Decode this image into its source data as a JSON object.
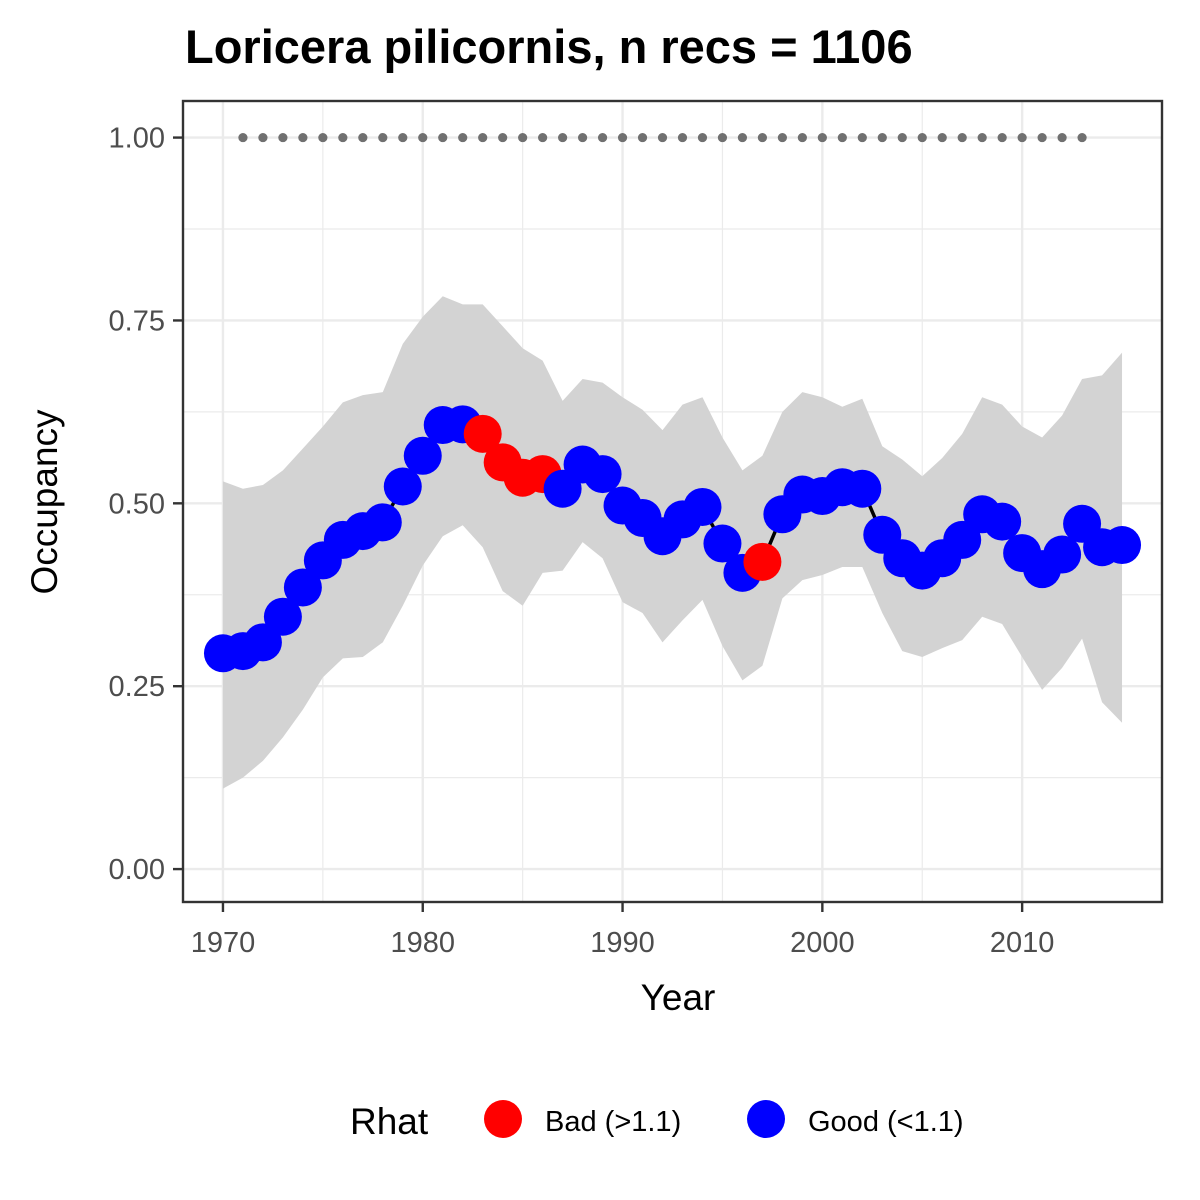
{
  "chart_data": {
    "type": "line",
    "title": "Loricera pilicornis, n recs = 1106",
    "xlabel": "Year",
    "ylabel": "Occupancy",
    "xlim": [
      1968,
      2017
    ],
    "ylim": [
      -0.045,
      1.05
    ],
    "x_ticks": [
      1970,
      1980,
      1990,
      2000,
      2010
    ],
    "y_ticks": [
      0.0,
      0.25,
      0.5,
      0.75,
      1.0
    ],
    "x_tick_labels": [
      "1970",
      "1980",
      "1990",
      "2000",
      "2010"
    ],
    "y_tick_labels": [
      "0.00",
      "0.25",
      "0.50",
      "0.75",
      "1.00"
    ],
    "grid": true,
    "legend": {
      "title": "Rhat",
      "position": "bottom",
      "entries": [
        {
          "label": "Bad (>1.1)",
          "color": "#ff0000"
        },
        {
          "label": "Good (<1.1)",
          "color": "#0000ff"
        }
      ]
    },
    "x": [
      1970,
      1971,
      1972,
      1973,
      1974,
      1975,
      1976,
      1977,
      1978,
      1979,
      1980,
      1981,
      1982,
      1983,
      1984,
      1985,
      1986,
      1987,
      1988,
      1989,
      1990,
      1991,
      1992,
      1993,
      1994,
      1995,
      1996,
      1997,
      1998,
      1999,
      2000,
      2001,
      2002,
      2003,
      2004,
      2005,
      2006,
      2007,
      2008,
      2009,
      2010,
      2011,
      2012,
      2013,
      2014,
      2015
    ],
    "series": [
      {
        "values": [
          0.295,
          0.298,
          0.31,
          0.345,
          0.385,
          0.422,
          0.45,
          0.462,
          0.474,
          0.523,
          0.565,
          0.607,
          0.608,
          0.595,
          0.556,
          0.535,
          0.54,
          0.52,
          0.553,
          0.54,
          0.497,
          0.48,
          0.455,
          0.478,
          0.495,
          0.445,
          0.405,
          0.42,
          0.485,
          0.512,
          0.51,
          0.522,
          0.52,
          0.457,
          0.425,
          0.408,
          0.425,
          0.45,
          0.485,
          0.475,
          0.432,
          0.41,
          0.43,
          0.472,
          0.44,
          0.443
        ],
        "rhat": [
          "Good",
          "Good",
          "Good",
          "Good",
          "Good",
          "Good",
          "Good",
          "Good",
          "Good",
          "Good",
          "Good",
          "Good",
          "Good",
          "Bad",
          "Bad",
          "Bad",
          "Bad",
          "Good",
          "Good",
          "Good",
          "Good",
          "Good",
          "Good",
          "Good",
          "Good",
          "Good",
          "Good",
          "Bad",
          "Good",
          "Good",
          "Good",
          "Good",
          "Good",
          "Good",
          "Good",
          "Good",
          "Good",
          "Good",
          "Good",
          "Good",
          "Good",
          "Good",
          "Good",
          "Good",
          "Good",
          "Good"
        ]
      }
    ],
    "ribbon": {
      "lower": [
        0.11,
        0.125,
        0.148,
        0.18,
        0.218,
        0.262,
        0.288,
        0.29,
        0.31,
        0.36,
        0.415,
        0.455,
        0.47,
        0.44,
        0.38,
        0.36,
        0.405,
        0.408,
        0.447,
        0.425,
        0.365,
        0.35,
        0.31,
        0.34,
        0.368,
        0.305,
        0.258,
        0.278,
        0.37,
        0.395,
        0.402,
        0.413,
        0.413,
        0.35,
        0.298,
        0.29,
        0.302,
        0.313,
        0.345,
        0.335,
        0.29,
        0.245,
        0.275,
        0.315,
        0.228,
        0.2
      ],
      "upper": [
        0.53,
        0.52,
        0.525,
        0.545,
        0.575,
        0.605,
        0.638,
        0.648,
        0.652,
        0.718,
        0.755,
        0.783,
        0.772,
        0.772,
        0.742,
        0.712,
        0.695,
        0.64,
        0.67,
        0.665,
        0.645,
        0.628,
        0.6,
        0.635,
        0.645,
        0.59,
        0.545,
        0.565,
        0.625,
        0.652,
        0.645,
        0.632,
        0.643,
        0.578,
        0.56,
        0.537,
        0.562,
        0.595,
        0.645,
        0.635,
        0.605,
        0.59,
        0.62,
        0.67,
        0.675,
        0.706
      ]
    },
    "reference_line": {
      "y": 1.0,
      "x_start": 1971,
      "x_end": 2013,
      "style": "dotted",
      "color": "#707070"
    },
    "colors": {
      "bad": "#ff0000",
      "good": "#0000ff",
      "ribbon": "#d3d3d3",
      "line": "#000000"
    }
  }
}
